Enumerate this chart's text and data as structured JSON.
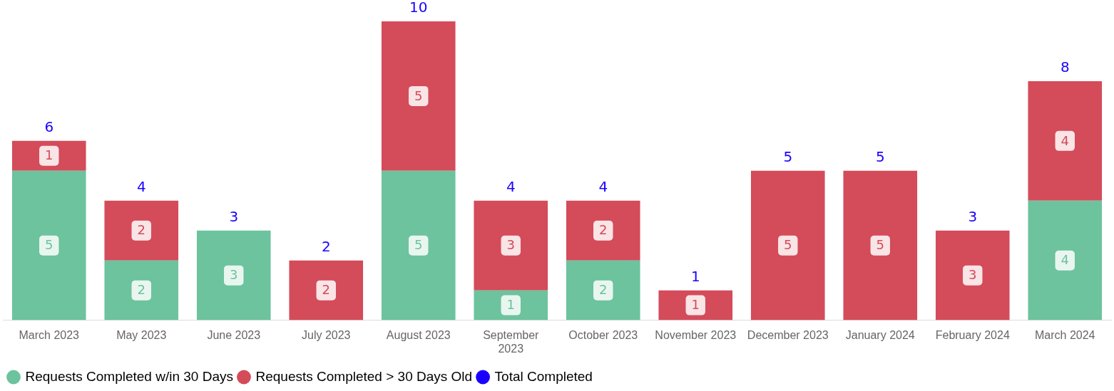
{
  "chart_data": {
    "type": "bar",
    "stacked": true,
    "categories": [
      "March 2023",
      "May 2023",
      "June 2023",
      "July 2023",
      "August 2023",
      "September 2023",
      "October 2023",
      "November 2023",
      "December 2023",
      "January 2024",
      "February 2024",
      "March 2024"
    ],
    "series": [
      {
        "name": "Requests Completed w/in 30 Days",
        "color": "#6cc39d",
        "values": [
          5,
          2,
          3,
          null,
          5,
          1,
          2,
          null,
          null,
          null,
          null,
          4
        ]
      },
      {
        "name": "Requests Completed > 30 Days Old",
        "color": "#d44b5a",
        "values": [
          1,
          2,
          null,
          2,
          5,
          3,
          2,
          1,
          5,
          5,
          3,
          4
        ]
      },
      {
        "name": "Total Completed",
        "color": "#1a00ff",
        "values": [
          null,
          null,
          null,
          null,
          null,
          null,
          null,
          null,
          null,
          null,
          null,
          null
        ]
      }
    ],
    "totals": [
      "6",
      "4",
      "3",
      "2",
      "10",
      "4",
      "4",
      "1",
      "5",
      "5",
      "3",
      "8"
    ],
    "data_labels": true,
    "legend": "bottom left",
    "grid": false,
    "tick_labels": "x"
  }
}
